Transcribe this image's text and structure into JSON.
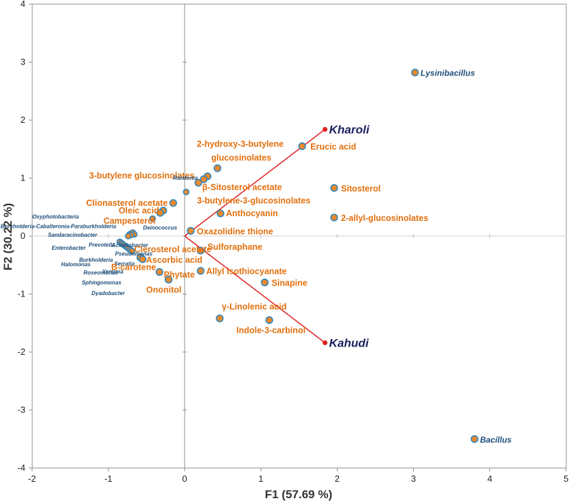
{
  "chart_data": {
    "type": "scatter",
    "subtype": "biplot",
    "xlabel": "F1 (57.69 %)",
    "ylabel": "F2 (30.22 %)",
    "xlim": [
      -2,
      5
    ],
    "ylim": [
      -4,
      4
    ],
    "x_ticks": [
      -2,
      -1,
      0,
      1,
      2,
      3,
      4,
      5
    ],
    "y_ticks": [
      -4,
      -3,
      -2,
      -1,
      0,
      1,
      2,
      3,
      4
    ],
    "colors": {
      "compound": "#e2700f",
      "bacteria": "#1f4e79",
      "marker_fill": "#e9892b",
      "marker_edge": "#2e86c1",
      "vector": "#e02020",
      "cultivar": "#1a1f5c",
      "axis": "#999999"
    },
    "vectors": [
      {
        "name": "Kharoli",
        "x": 1.84,
        "y": 1.84
      },
      {
        "name": "Kahudi",
        "x": 1.84,
        "y": -1.84
      }
    ],
    "points": [
      {
        "label": "Lysinibacillus",
        "x": 3.02,
        "y": 2.82,
        "group": "major"
      },
      {
        "label": "Bacillus",
        "x": 3.8,
        "y": -3.5,
        "group": "major"
      },
      {
        "label": "Erucic acid",
        "x": 1.54,
        "y": 1.55,
        "group": "compound"
      },
      {
        "label": "Sitosterol",
        "x": 1.96,
        "y": 0.83,
        "group": "compound"
      },
      {
        "label": "2-allyl-glucosinolates",
        "x": 1.96,
        "y": 0.32,
        "group": "compound"
      },
      {
        "label": "2-hydroxy-3-butylene glucosinolates",
        "x": 0.43,
        "y": 1.17,
        "group": "compound"
      },
      {
        "label": "3-butylene glucosinolates",
        "x": 0.3,
        "y": 1.03,
        "group": "compound"
      },
      {
        "label": "β-Sitosterol acetate",
        "x": 0.25,
        "y": 0.98,
        "group": "compound"
      },
      {
        "label": "3-butylene-3-glucosinolates",
        "x": 0.18,
        "y": 0.92,
        "group": "compound"
      },
      {
        "label": "Ralstonia",
        "x": 0.02,
        "y": 0.76,
        "group": "bacteria"
      },
      {
        "label": "Clionasterol acetate",
        "x": -0.15,
        "y": 0.57,
        "group": "compound"
      },
      {
        "label": "Oleic acid",
        "x": -0.28,
        "y": 0.44,
        "group": "compound"
      },
      {
        "label": "Campesterol",
        "x": -0.32,
        "y": 0.4,
        "group": "compound"
      },
      {
        "label": "Anthocyanin",
        "x": 0.47,
        "y": 0.39,
        "group": "compound"
      },
      {
        "label": "Oxazolidine thione",
        "x": 0.08,
        "y": 0.09,
        "group": "compound"
      },
      {
        "label": "Deinococcus",
        "x": -0.42,
        "y": 0.3,
        "group": "bacteria"
      },
      {
        "label": "Acinetobacter",
        "x": -0.68,
        "y": 0.06,
        "group": "bacteria"
      },
      {
        "label": "Pseudomonas",
        "x": -0.66,
        "y": 0.03,
        "group": "bacteria"
      },
      {
        "label": "Oxyphotobacteria",
        "x": -0.72,
        "y": 0.03,
        "group": "bacteria"
      },
      {
        "label": "Burkholderia-Caballeronia-Paraburkholderia",
        "x": -0.7,
        "y": 0.02,
        "group": "bacteria"
      },
      {
        "label": "Sandaracinobacter",
        "x": -0.74,
        "y": 0.0,
        "group": "bacteria"
      },
      {
        "label": "Prevotella",
        "x": -0.85,
        "y": -0.1,
        "group": "bacteria"
      },
      {
        "label": "Enterobacter",
        "x": -0.83,
        "y": -0.12,
        "group": "bacteria"
      },
      {
        "label": "Halomonas",
        "x": -0.81,
        "y": -0.14,
        "group": "bacteria"
      },
      {
        "label": "Burkholderia",
        "x": -0.79,
        "y": -0.16,
        "group": "bacteria"
      },
      {
        "label": "Serratia",
        "x": -0.77,
        "y": -0.18,
        "group": "bacteria"
      },
      {
        "label": "Roseomonas",
        "x": -0.75,
        "y": -0.2,
        "group": "bacteria"
      },
      {
        "label": "Yersinia",
        "x": -0.73,
        "y": -0.22,
        "group": "bacteria"
      },
      {
        "label": "Sphingomonas",
        "x": -0.71,
        "y": -0.24,
        "group": "bacteria"
      },
      {
        "label": "Dyadobacter",
        "x": -0.69,
        "y": -0.26,
        "group": "bacteria"
      },
      {
        "label": "Sulforaphane",
        "x": 0.21,
        "y": -0.25,
        "group": "compound"
      },
      {
        "label": "Clerosterol acetate",
        "x": -0.58,
        "y": -0.37,
        "group": "compound"
      },
      {
        "label": "Ascorbic acid",
        "x": -0.55,
        "y": -0.4,
        "group": "compound"
      },
      {
        "label": "Allyl isothiocyanate",
        "x": 0.21,
        "y": -0.6,
        "group": "compound"
      },
      {
        "label": "B-carotene",
        "x": -0.33,
        "y": -0.62,
        "group": "compound"
      },
      {
        "label": "Phytate",
        "x": -0.21,
        "y": -0.75,
        "group": "compound"
      },
      {
        "label": "Ononitol",
        "x": -0.21,
        "y": -0.75,
        "group": "compound"
      },
      {
        "label": "Sinapine",
        "x": 1.05,
        "y": -0.8,
        "group": "compound"
      },
      {
        "label": "γ-Linolenic acid",
        "x": 0.46,
        "y": -1.42,
        "group": "compound"
      },
      {
        "label": "Indole-3-carbinol",
        "x": 1.11,
        "y": -1.45,
        "group": "compound"
      }
    ]
  }
}
